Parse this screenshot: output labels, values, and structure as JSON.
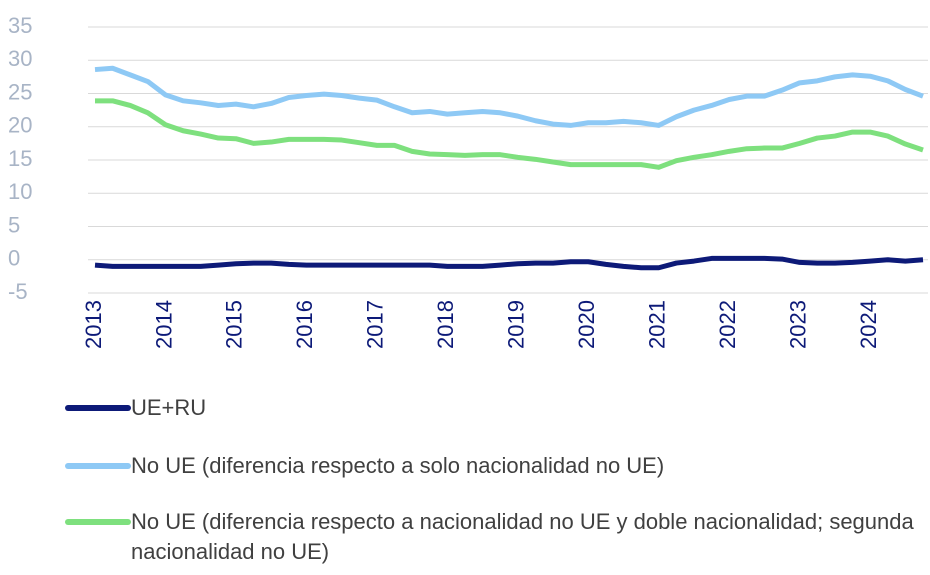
{
  "chart_data": {
    "type": "line",
    "categories": [
      "2013",
      null,
      null,
      null,
      "2014",
      null,
      null,
      null,
      "2015",
      null,
      null,
      null,
      "2016",
      null,
      null,
      null,
      "2017",
      null,
      null,
      null,
      "2018",
      null,
      null,
      null,
      "2019",
      null,
      null,
      null,
      "2020",
      null,
      null,
      null,
      "2021",
      null,
      null,
      null,
      "2022",
      null,
      null,
      null,
      "2023",
      null,
      null,
      null,
      "2024",
      null,
      null,
      null
    ],
    "series": [
      {
        "name": "UE+RU",
        "color": "#0d1a78",
        "values": [
          -0.8,
          -1,
          -1,
          -1,
          -1,
          -1,
          -1,
          -0.8,
          -0.6,
          -0.5,
          -0.5,
          -0.7,
          -0.8,
          -0.8,
          -0.8,
          -0.8,
          -0.8,
          -0.8,
          -0.8,
          -0.8,
          -1,
          -1,
          -1,
          -0.8,
          -0.6,
          -0.5,
          -0.5,
          -0.3,
          -0.3,
          -0.7,
          -1,
          -1.2,
          -1.2,
          -0.5,
          -0.2,
          0.2,
          0.2,
          0.2,
          0.2,
          0.1,
          -0.4,
          -0.5,
          -0.5,
          -0.4,
          -0.2,
          0,
          -0.2,
          0
        ]
      },
      {
        "name": "No UE (diferencia respecto a solo nacionalidad no UE)",
        "color": "#8ec9f5",
        "values": [
          28.6,
          28.8,
          27.8,
          26.8,
          24.8,
          23.9,
          23.6,
          23.2,
          23.4,
          23.0,
          23.5,
          24.4,
          24.7,
          24.9,
          24.7,
          24.3,
          24.0,
          23.0,
          22.1,
          22.3,
          21.9,
          22.1,
          22.3,
          22.1,
          21.6,
          20.9,
          20.4,
          20.2,
          20.6,
          20.6,
          20.8,
          20.6,
          20.2,
          21.5,
          22.5,
          23.2,
          24.1,
          24.6,
          24.6,
          25.5,
          26.6,
          26.9,
          27.5,
          27.8,
          27.6,
          26.9,
          25.6,
          24.6
        ]
      },
      {
        "name": "No UE (diferencia respecto a nacionalidad no UE y doble nacionalidad; segunda nacionalidad no UE)",
        "color": "#7ee07e",
        "values": [
          23.9,
          23.9,
          23.2,
          22.1,
          20.3,
          19.4,
          18.9,
          18.3,
          18.2,
          17.5,
          17.7,
          18.1,
          18.1,
          18.1,
          18.0,
          17.6,
          17.2,
          17.2,
          16.3,
          15.9,
          15.8,
          15.7,
          15.8,
          15.8,
          15.4,
          15.1,
          14.7,
          14.3,
          14.3,
          14.3,
          14.3,
          14.3,
          13.9,
          14.9,
          15.4,
          15.8,
          16.3,
          16.7,
          16.8,
          16.8,
          17.5,
          18.3,
          18.6,
          19.2,
          19.2,
          18.6,
          17.4,
          16.5
        ]
      }
    ],
    "ylim": [
      -5,
      35
    ],
    "yticks": [
      -5,
      0,
      5,
      10,
      15,
      20,
      25,
      30,
      35
    ],
    "grid": true
  }
}
